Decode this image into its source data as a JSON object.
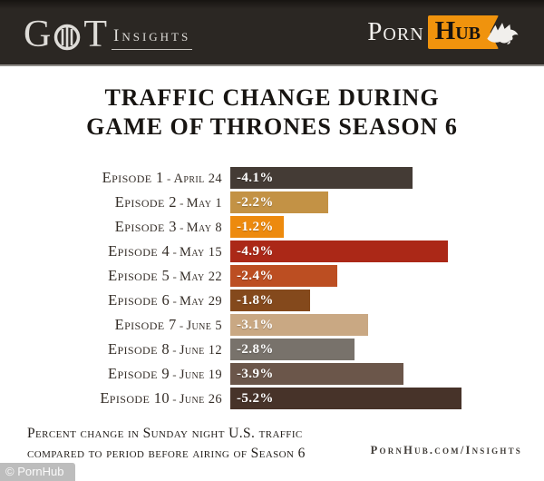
{
  "header": {
    "got_logo": {
      "g": "G",
      "t": "T",
      "insights": "Insights"
    },
    "pornhub_logo": {
      "porn": "Porn",
      "hub": "Hub"
    }
  },
  "title": {
    "line1": "TRAFFIC CHANGE DURING",
    "line2": "GAME OF THRONES SEASON 6"
  },
  "chart_data": {
    "type": "bar",
    "orientation": "horizontal",
    "title": "Traffic Change During Game of Thrones Season 6",
    "xlabel": "",
    "ylabel": "",
    "unit": "%",
    "value_axis_range": [
      0,
      -5.5
    ],
    "grid": false,
    "legend": false,
    "separator": "-",
    "categories": [
      "Episode 1 - April 24",
      "Episode 2 - May 1",
      "Episode 3 - May 8",
      "Episode 4 - May 15",
      "Episode 5 - May 22",
      "Episode 6 - May 29",
      "Episode 7 - June 5",
      "Episode 8 - June 12",
      "Episode 9 - June 19",
      "Episode 10 - June 26"
    ],
    "values": [
      -4.1,
      -2.2,
      -1.2,
      -4.9,
      -2.4,
      -1.8,
      -3.1,
      -2.8,
      -3.9,
      -5.2
    ],
    "bars": [
      {
        "episode": "Episode 1",
        "date": "April 24",
        "value": -4.1,
        "label": "-4.1%",
        "color": "#443b35"
      },
      {
        "episode": "Episode 2",
        "date": "May 1",
        "value": -2.2,
        "label": "-2.2%",
        "color": "#c39245"
      },
      {
        "episode": "Episode 3",
        "date": "May 8",
        "value": -1.2,
        "label": "-1.2%",
        "color": "#ed8a0e"
      },
      {
        "episode": "Episode 4",
        "date": "May 15",
        "value": -4.9,
        "label": "-4.9%",
        "color": "#ab2817"
      },
      {
        "episode": "Episode 5",
        "date": "May 22",
        "value": -2.4,
        "label": "-2.4%",
        "color": "#bc4e22"
      },
      {
        "episode": "Episode 6",
        "date": "May 29",
        "value": -1.8,
        "label": "-1.8%",
        "color": "#84491c"
      },
      {
        "episode": "Episode 7",
        "date": "June 5",
        "value": -3.1,
        "label": "-3.1%",
        "color": "#c9a883"
      },
      {
        "episode": "Episode 8",
        "date": "June 12",
        "value": -2.8,
        "label": "-2.8%",
        "color": "#78726b"
      },
      {
        "episode": "Episode 9",
        "date": "June 19",
        "value": -3.9,
        "label": "-3.9%",
        "color": "#6b564a"
      },
      {
        "episode": "Episode 10",
        "date": "June 26",
        "value": -5.2,
        "label": "-5.2%",
        "color": "#473329"
      }
    ]
  },
  "footer": {
    "note_line1": "Percent change in Sunday night U.S. traffic",
    "note_line2": "compared to period before airing of Season 6",
    "site": "PornHub.com/Insights"
  },
  "watermark": "© PornHub",
  "colors": {
    "header_bg": "#2b2723",
    "pornhub_orange": "#f0930d",
    "bar_value_text": "#ffffff",
    "label_text": "#352e28",
    "title_text": "#181512"
  }
}
